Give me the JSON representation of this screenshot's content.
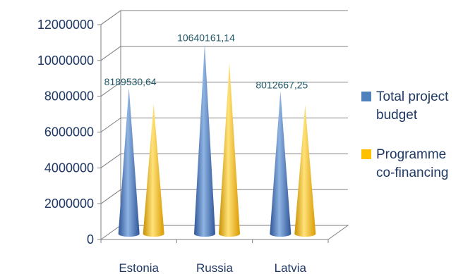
{
  "chart_data": {
    "type": "bar",
    "style": "3d-cone",
    "categories": [
      "Estonia",
      "Russia",
      "Latvia"
    ],
    "series": [
      {
        "name": "Total project budget",
        "values": [
          8189530.64,
          10640161.14,
          8012667.25
        ],
        "color": "#4f81bd"
      },
      {
        "name": "Programme co-financing",
        "values": [
          7300000,
          9600000,
          7250000
        ],
        "color": "#ffc000"
      }
    ],
    "data_labels": [
      "8189530,64",
      "10640161,14",
      "8012667,25"
    ],
    "y_ticks": [
      "0",
      "2000000",
      "4000000",
      "6000000",
      "8000000",
      "10000000",
      "12000000"
    ],
    "ylim": [
      0,
      12000000
    ],
    "grid": true,
    "legend_position": "right",
    "legend_lines": [
      [
        "Total project",
        "budget"
      ],
      [
        "Programme",
        "co-financing"
      ]
    ],
    "title": "",
    "xlabel": "",
    "ylabel": ""
  }
}
